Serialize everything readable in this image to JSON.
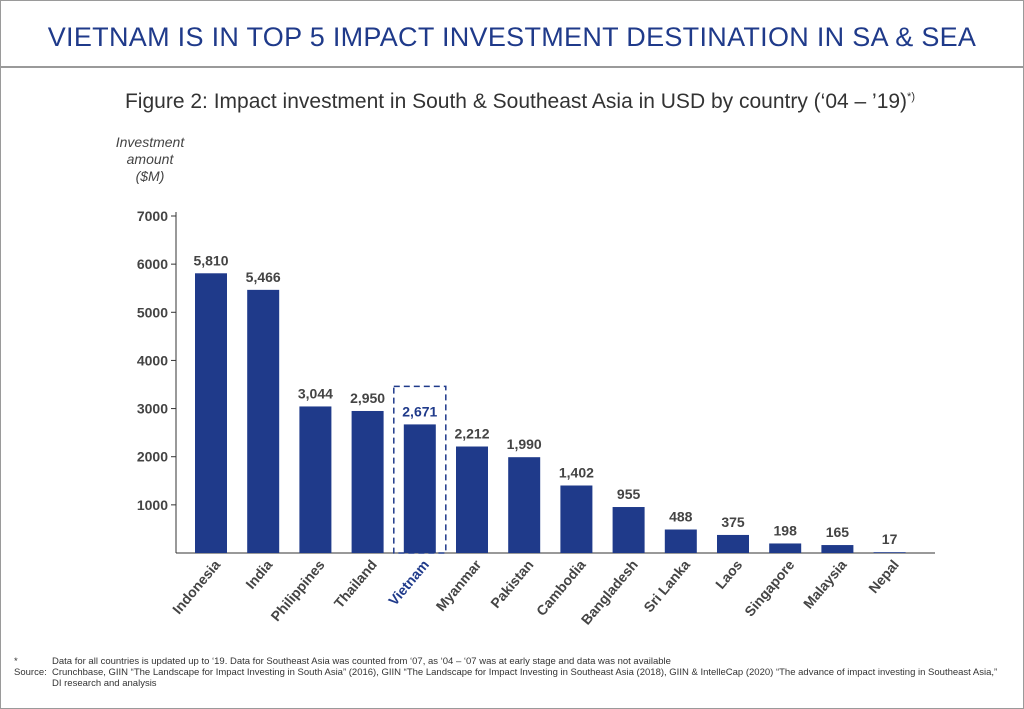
{
  "header": {
    "title": "VIETNAM IS IN TOP 5 IMPACT INVESTMENT DESTINATION IN SA & SEA",
    "subtitle": "Figure 2: Impact investment in South & Southeast Asia in USD by country (‘04 – ’19)",
    "subtitle_sup": "*)"
  },
  "chart_data": {
    "type": "bar",
    "ylabel": [
      "Investment",
      "amount",
      "($M)"
    ],
    "categories": [
      "Indonesia",
      "India",
      "Philippines",
      "Thailand",
      "Vietnam",
      "Myanmar",
      "Pakistan",
      "Cambodia",
      "Bangladesh",
      "Sri Lanka",
      "Laos",
      "Singapore",
      "Malaysia",
      "Nepal"
    ],
    "values": [
      5810,
      5466,
      3044,
      2950,
      2671,
      2212,
      1990,
      1402,
      955,
      488,
      375,
      198,
      165,
      17
    ],
    "data_labels": [
      "5,810",
      "5,466",
      "3,044",
      "2,950",
      "2,671",
      "2,212",
      "1,990",
      "1,402",
      "955",
      "488",
      "375",
      "198",
      "165",
      "17"
    ],
    "yticks": [
      1000,
      2000,
      3000,
      4000,
      5000,
      6000,
      7000
    ],
    "ylim": [
      0,
      7000
    ],
    "highlight": "Vietnam",
    "colors": {
      "bar": "#1f3a8a",
      "highlight_text": "#1f3a8a",
      "label": "#444444"
    }
  },
  "footnotes": [
    {
      "key": "*",
      "text": "Data for all countries is updated up to ‘19. Data for Southeast Asia was counted from ‘07, as ‘04 – ‘07 was at early stage and data was not available"
    },
    {
      "key": "Source:",
      "text": "Crunchbase, GIIN “The Landscape for Impact Investing in South Asia” (2016), GIIN “The Landscape for Impact Investing in Southeast Asia (2018), GIIN & IntelleCap (2020) “The advance of impact investing in Southeast Asia,”  DI research and analysis"
    }
  ]
}
